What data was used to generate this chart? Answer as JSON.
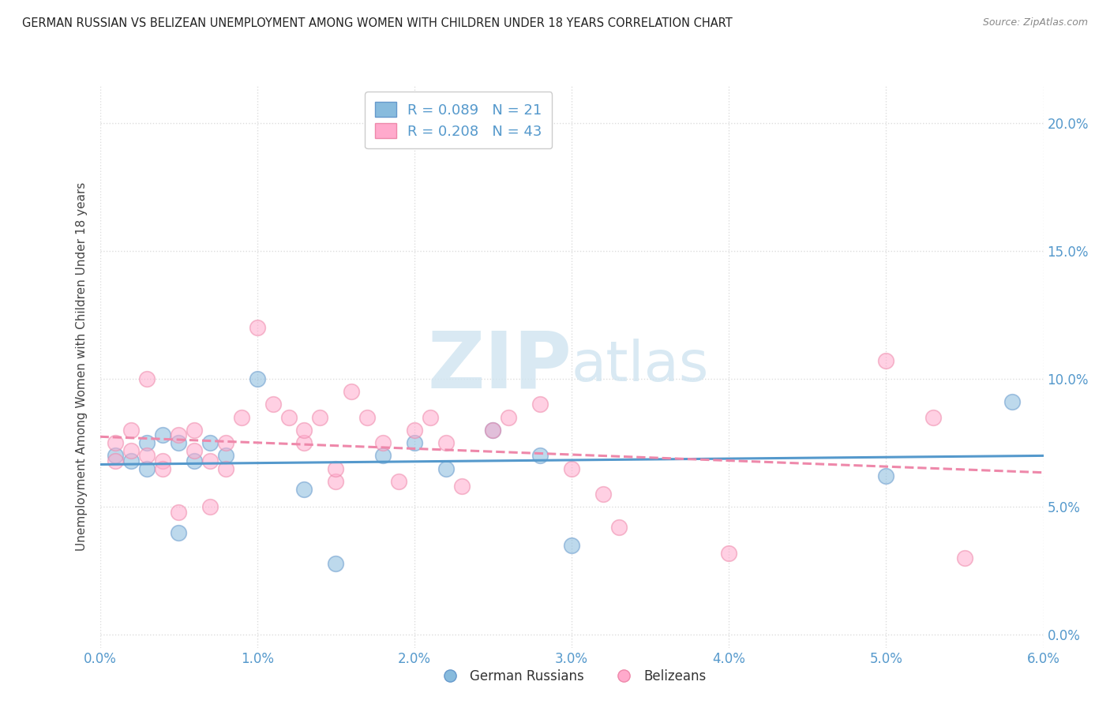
{
  "title": "GERMAN RUSSIAN VS BELIZEAN UNEMPLOYMENT AMONG WOMEN WITH CHILDREN UNDER 18 YEARS CORRELATION CHART",
  "source": "Source: ZipAtlas.com",
  "ylabel": "Unemployment Among Women with Children Under 18 years",
  "xlabel_ticks": [
    "0.0%",
    "1.0%",
    "2.0%",
    "3.0%",
    "4.0%",
    "5.0%",
    "6.0%"
  ],
  "ylabel_ticks": [
    "0.0%",
    "5.0%",
    "10.0%",
    "15.0%",
    "20.0%"
  ],
  "xlim": [
    0.0,
    0.06
  ],
  "ylim": [
    -0.005,
    0.215
  ],
  "legend_bottom": [
    "German Russians",
    "Belizeans"
  ],
  "gr_color": "#88bbdd",
  "gr_edge_color": "#6699cc",
  "gr_line_color": "#5599cc",
  "bz_color": "#ffaacc",
  "bz_edge_color": "#ee88aa",
  "bz_line_color": "#ee88aa",
  "watermark_color": "#d0e4f0",
  "grid_color": "#dddddd",
  "title_color": "#222222",
  "tick_label_color": "#5599cc",
  "legend_R_N_color": "#5599cc",
  "gr_R": 0.089,
  "gr_N": 21,
  "bz_R": 0.208,
  "bz_N": 43,
  "gr_x": [
    0.001,
    0.002,
    0.003,
    0.003,
    0.004,
    0.005,
    0.005,
    0.006,
    0.007,
    0.008,
    0.01,
    0.013,
    0.015,
    0.018,
    0.02,
    0.022,
    0.025,
    0.028,
    0.03,
    0.05,
    0.058
  ],
  "gr_y": [
    0.07,
    0.068,
    0.065,
    0.075,
    0.078,
    0.075,
    0.04,
    0.068,
    0.075,
    0.07,
    0.1,
    0.057,
    0.028,
    0.07,
    0.075,
    0.065,
    0.08,
    0.07,
    0.035,
    0.062,
    0.091
  ],
  "bz_x": [
    0.001,
    0.001,
    0.002,
    0.002,
    0.003,
    0.003,
    0.004,
    0.004,
    0.005,
    0.005,
    0.006,
    0.006,
    0.007,
    0.007,
    0.008,
    0.008,
    0.009,
    0.01,
    0.011,
    0.012,
    0.013,
    0.013,
    0.014,
    0.015,
    0.015,
    0.016,
    0.017,
    0.018,
    0.019,
    0.02,
    0.021,
    0.022,
    0.023,
    0.025,
    0.026,
    0.028,
    0.03,
    0.032,
    0.033,
    0.04,
    0.05,
    0.053,
    0.055
  ],
  "bz_y": [
    0.075,
    0.068,
    0.08,
    0.072,
    0.1,
    0.07,
    0.068,
    0.065,
    0.078,
    0.048,
    0.08,
    0.072,
    0.05,
    0.068,
    0.075,
    0.065,
    0.085,
    0.12,
    0.09,
    0.085,
    0.075,
    0.08,
    0.085,
    0.06,
    0.065,
    0.095,
    0.085,
    0.075,
    0.06,
    0.08,
    0.085,
    0.075,
    0.058,
    0.08,
    0.085,
    0.09,
    0.065,
    0.055,
    0.042,
    0.032,
    0.107,
    0.085,
    0.03
  ]
}
